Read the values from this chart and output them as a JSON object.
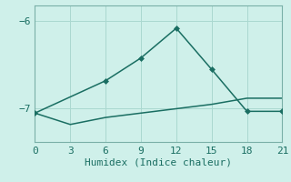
{
  "xlabel": "Humidex (Indice chaleur)",
  "background_color": "#cff0ea",
  "grid_color": "#aad8d0",
  "line_color": "#1a6e62",
  "x_peaked": [
    0,
    6,
    9,
    12,
    15,
    18,
    21
  ],
  "y_peaked": [
    -7.05,
    -6.68,
    -6.42,
    -6.08,
    -6.55,
    -7.03,
    -7.03
  ],
  "x_flat": [
    0,
    3,
    6,
    9,
    12,
    15,
    18,
    21
  ],
  "y_flat": [
    -7.05,
    -7.18,
    -7.1,
    -7.05,
    -7.0,
    -6.95,
    -6.88,
    -6.88
  ],
  "xlim": [
    0,
    21
  ],
  "ylim": [
    -7.38,
    -5.82
  ],
  "yticks": [
    -7,
    -6
  ],
  "xticks": [
    0,
    3,
    6,
    9,
    12,
    15,
    18,
    21
  ],
  "marker": "D",
  "markersize": 3.0,
  "linewidth": 1.1,
  "tick_fontsize": 8,
  "label_fontsize": 8,
  "spine_color": "#7ab0a8",
  "tick_color": "#1a6e62"
}
